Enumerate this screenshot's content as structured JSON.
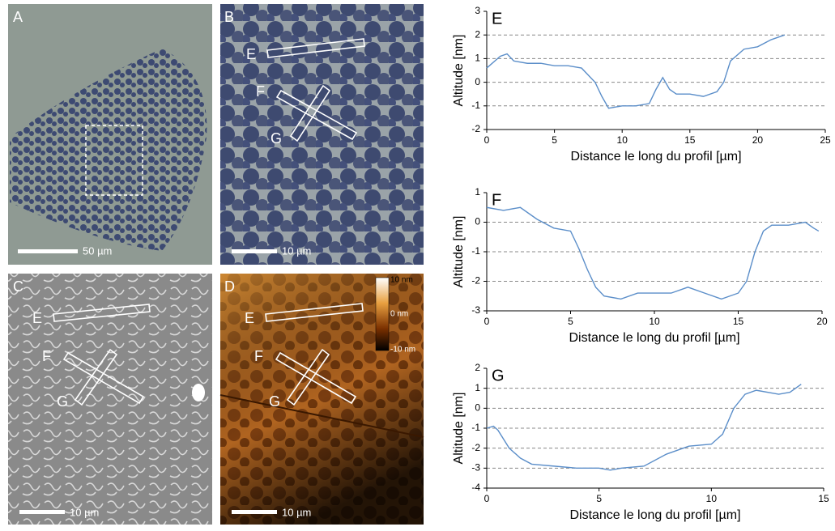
{
  "panels": [
    {
      "label": "A",
      "scale_bar": "50 µm"
    },
    {
      "label": "B",
      "scale_bar": "10 µm",
      "profiles": [
        "E",
        "F",
        "G"
      ]
    },
    {
      "label": "C",
      "scale_bar": "10 µm",
      "profiles": [
        "E",
        "F",
        "G"
      ]
    },
    {
      "label": "D",
      "scale_bar": "10 µm",
      "profiles": [
        "E",
        "F",
        "G"
      ]
    }
  ],
  "colorbar": {
    "max": "10 nm",
    "mid": "0 nm",
    "min": "-10 nm"
  },
  "chart_data": [
    {
      "type": "line",
      "title": "E",
      "x_label": "Distance le long du profil  [µm]",
      "y_label": "Altitude [nm]",
      "color": "#5b8ec9",
      "grid": true,
      "x": [
        0,
        1,
        1.5,
        2,
        3,
        4,
        5,
        6,
        7,
        8,
        8.5,
        9,
        10,
        11,
        12,
        12.5,
        13,
        13.5,
        14,
        15,
        16,
        17,
        17.5,
        18,
        19,
        20,
        21,
        22
      ],
      "values": [
        0.6,
        1.1,
        1.2,
        0.9,
        0.8,
        0.8,
        0.7,
        0.7,
        0.6,
        0,
        -0.6,
        -1.1,
        -1.0,
        -1.0,
        -0.9,
        -0.3,
        0.2,
        -0.3,
        -0.5,
        -0.5,
        -0.6,
        -0.4,
        0,
        0.9,
        1.4,
        1.5,
        1.8,
        2.0
      ],
      "xlim": [
        0,
        25
      ],
      "xticks": [
        0,
        5,
        10,
        15,
        20,
        25
      ],
      "ylim": [
        -2,
        3
      ],
      "yticks": [
        -2,
        -1,
        0,
        1,
        2,
        3
      ]
    },
    {
      "type": "line",
      "title": "F",
      "x_label": "Distance le long du profil  [µm]",
      "y_label": "Altitude [nm]",
      "color": "#5b8ec9",
      "grid": true,
      "x": [
        0,
        1,
        2,
        3,
        4,
        5,
        5.5,
        6,
        6.5,
        7,
        8,
        9,
        10,
        11,
        12,
        13,
        14,
        15,
        15.5,
        16,
        16.5,
        17,
        18,
        19,
        19.5,
        19.8
      ],
      "values": [
        0.5,
        0.4,
        0.5,
        0.1,
        -0.2,
        -0.3,
        -0.9,
        -1.6,
        -2.2,
        -2.5,
        -2.6,
        -2.4,
        -2.4,
        -2.4,
        -2.2,
        -2.4,
        -2.6,
        -2.4,
        -2.0,
        -1.0,
        -0.3,
        -0.1,
        -0.1,
        0.0,
        -0.2,
        -0.3
      ],
      "xlim": [
        0,
        20
      ],
      "xticks": [
        0,
        5,
        10,
        15,
        20
      ],
      "ylim": [
        -3,
        1
      ],
      "yticks": [
        -3,
        -2,
        -1,
        0,
        1
      ]
    },
    {
      "type": "line",
      "title": "G",
      "x_label": "Distance le long du profil  [µm]",
      "y_label": "Altitude [nm]",
      "color": "#5b8ec9",
      "grid": true,
      "x": [
        0,
        0.3,
        0.5,
        1,
        1.5,
        2,
        3,
        4,
        5,
        5.5,
        6,
        7,
        8,
        9,
        10,
        10.5,
        11,
        11.5,
        12,
        13,
        13.5,
        14
      ],
      "values": [
        -1.0,
        -0.9,
        -1.1,
        -2.0,
        -2.5,
        -2.8,
        -2.9,
        -3.0,
        -3.0,
        -3.1,
        -3.0,
        -2.9,
        -2.3,
        -1.9,
        -1.8,
        -1.3,
        0.0,
        0.7,
        0.9,
        0.7,
        0.8,
        1.2
      ],
      "xlim": [
        0,
        15
      ],
      "xticks": [
        0,
        5,
        10,
        15
      ],
      "ylim": [
        -4,
        2
      ],
      "yticks": [
        -4,
        -3,
        -2,
        -1,
        0,
        1,
        2
      ]
    }
  ]
}
